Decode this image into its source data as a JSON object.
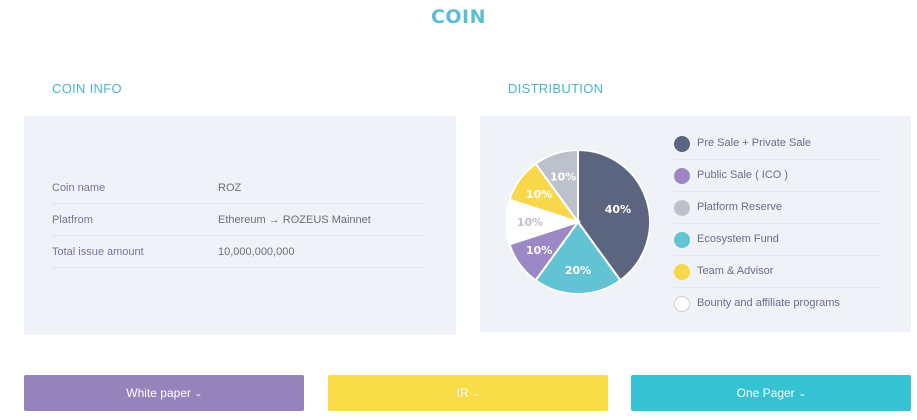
{
  "page": {
    "title": "COIN"
  },
  "coin_info": {
    "title": "COIN INFO",
    "rows": [
      {
        "label": "Coin name",
        "value": "ROZ"
      },
      {
        "label": "Platfrom",
        "value": "Ethereum → ROZEUS Mainnet"
      },
      {
        "label": "Total issue amount",
        "value": "10,000,000,000"
      }
    ]
  },
  "distribution": {
    "title": "DISTRIBUTION",
    "legend": [
      {
        "label": "Pre Sale + Private Sale",
        "color": "#5b6580"
      },
      {
        "label": "Public Sale ( ICO )",
        "color": "#9b88c4"
      },
      {
        "label": "Platform Reserve",
        "color": "#bcc1cc"
      },
      {
        "label": "Ecosystem Fund",
        "color": "#62c3d4"
      },
      {
        "label": "Team & Advisor",
        "color": "#f8d84a"
      },
      {
        "label": "Bounty and affiliate programs",
        "color": "#ffffff"
      }
    ]
  },
  "chart_data": {
    "type": "pie",
    "slices": [
      {
        "label_text": "40%",
        "value": 40,
        "color": "#5b6580"
      },
      {
        "label_text": "20%",
        "value": 20,
        "color": "#62c3d4"
      },
      {
        "label_text": "10%",
        "value": 10,
        "color": "#9b88c4"
      },
      {
        "label_text": "10%",
        "value": 10,
        "color": "#ffffff"
      },
      {
        "label_text": "10%",
        "value": 10,
        "color": "#f8d84a"
      },
      {
        "label_text": "10%",
        "value": 10,
        "color": "#bcc1cc"
      }
    ]
  },
  "buttons": {
    "white_paper": "White paper",
    "ir": "IR",
    "one_pager": "One Pager",
    "chevron": "⌄"
  }
}
